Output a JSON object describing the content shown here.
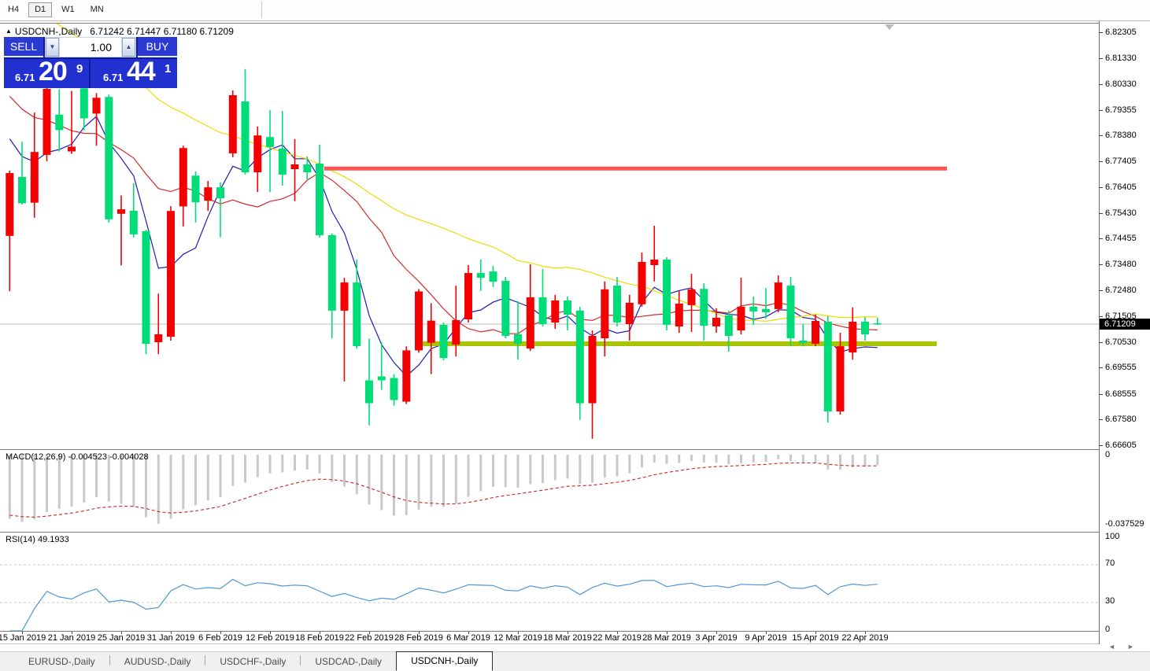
{
  "toolbar": {
    "timeframes": [
      "H4",
      "D1",
      "W1",
      "MN"
    ],
    "active": "D1"
  },
  "chart": {
    "collapse_icon": "▲",
    "title_symbol": "USDCNH-,Daily",
    "ohlc_display": "6.71242 6.71447 6.71180 6.71209"
  },
  "trade_panel": {
    "sell_label": "SELL",
    "buy_label": "BUY",
    "volume": "1.00",
    "sell_price_small": "6.71",
    "sell_price_big": "20",
    "sell_price_sup": "9",
    "buy_price_small": "6.71",
    "buy_price_big": "44",
    "buy_price_sup": "1"
  },
  "price_axis": {
    "ticks": [
      "6.82305",
      "6.81330",
      "6.80330",
      "6.79355",
      "6.78380",
      "6.77405",
      "6.76405",
      "6.75430",
      "6.74455",
      "6.73480",
      "6.72480",
      "6.71505",
      "6.70530",
      "6.69555",
      "6.68555",
      "6.67580",
      "6.66605"
    ],
    "current_price": "6.71209"
  },
  "macd_panel": {
    "label": "MACD(12,26,9)",
    "value_main": "-0.004523",
    "value_signal": "-0.004028",
    "axis_top": "0",
    "axis_bottom": "-0.037529"
  },
  "rsi_panel": {
    "label": "RSI(14)",
    "value": "49.1933",
    "axis_labels": [
      "100",
      "70",
      "30",
      "0"
    ]
  },
  "bottom_tabs": {
    "items": [
      "EURUSD-,Daily",
      "AUDUSD-,Daily",
      "USDCHF-,Daily",
      "USDCAD-,Daily",
      "USDCNH-,Daily"
    ],
    "active": "USDCNH-,Daily"
  },
  "scroll_arrows": {
    "left": "◄",
    "right": "►"
  },
  "chart_data": {
    "type": "candlestick",
    "symbol": "USDCNH-",
    "timeframe": "Daily",
    "title": "USDCNH-,Daily",
    "y_range": [
      6.66605,
      6.82305
    ],
    "color_convention": "red body = close above open (bullish), green body = close below open (bearish)",
    "bull_color": "#f50000",
    "bear_color": "#00dc78",
    "candles": [
      [
        "14 Jan 2019",
        6.7456,
        6.7704,
        6.7246,
        6.7695
      ],
      [
        "15 Jan 2019",
        6.768,
        6.7814,
        6.7575,
        6.758
      ],
      [
        "16 Jan 2019",
        6.7582,
        6.7925,
        6.7525,
        6.7775
      ],
      [
        "17 Jan 2019",
        6.7764,
        6.8024,
        6.774,
        6.8015
      ],
      [
        "18 Jan 2019",
        6.7917,
        6.8013,
        6.7777,
        6.7858
      ],
      [
        "21 Jan 2019",
        6.7777,
        6.8007,
        6.7768,
        6.7795
      ],
      [
        "22 Jan 2019",
        6.8017,
        6.803,
        6.7858,
        6.7903
      ],
      [
        "23 Jan 2019",
        6.7921,
        6.7999,
        6.7799,
        6.7981
      ],
      [
        "24 Jan 2019",
        6.7984,
        6.7993,
        6.7507,
        6.7519
      ],
      [
        "25 Jan 2019",
        6.754,
        6.761,
        6.7344,
        6.7557
      ],
      [
        "28 Jan 2019",
        6.7552,
        6.7656,
        6.745,
        6.7462
      ],
      [
        "29 Jan 2019",
        6.7474,
        6.748,
        6.7007,
        6.7046
      ],
      [
        "30 Jan 2019",
        6.7052,
        6.7237,
        6.7007,
        6.7082
      ],
      [
        "31 Jan 2019",
        6.7073,
        6.7569,
        6.7058,
        6.7551
      ],
      [
        "1 Feb 2019",
        6.7568,
        6.7799,
        6.7492,
        6.779
      ],
      [
        "4 Feb 2019",
        6.7685,
        6.7701,
        6.7507,
        6.7584
      ],
      [
        "5 Feb 2019",
        6.759,
        6.7665,
        6.7551,
        6.7641
      ],
      [
        "6 Feb 2019",
        6.7641,
        6.766,
        6.7451,
        6.7599
      ],
      [
        "7 Feb 2019",
        6.777,
        6.8009,
        6.7755,
        6.7991
      ],
      [
        "8 Feb 2019",
        6.7967,
        6.809,
        6.7689,
        6.7698
      ],
      [
        "11 Feb 2019",
        6.7698,
        6.7872,
        6.7623,
        6.7838
      ],
      [
        "12 Feb 2019",
        6.7832,
        6.7934,
        6.7623,
        6.7794
      ],
      [
        "13 Feb 2019",
        6.7788,
        6.7931,
        6.7647,
        6.7689
      ],
      [
        "14 Feb 2019",
        6.771,
        6.7824,
        6.7588,
        6.7728
      ],
      [
        "15 Feb 2019",
        6.7728,
        6.7758,
        6.7668,
        6.7698
      ],
      [
        "18 Feb 2019",
        6.7731,
        6.7803,
        6.745,
        6.7459
      ],
      [
        "19 Feb 2019",
        6.7459,
        6.7465,
        6.7067,
        6.7172
      ],
      [
        "20 Feb 2019",
        6.7172,
        6.7297,
        6.6903,
        6.7279
      ],
      [
        "21 Feb 2019",
        6.7279,
        6.7367,
        6.7028,
        6.7037
      ],
      [
        "22 Feb 2019",
        6.6907,
        6.7066,
        6.6736,
        6.682
      ],
      [
        "25 Feb 2019",
        6.6922,
        6.7052,
        6.6871,
        6.6907
      ],
      [
        "26 Feb 2019",
        6.6916,
        6.6931,
        6.6811,
        6.6832
      ],
      [
        "27 Feb 2019",
        6.6826,
        6.7036,
        6.6817,
        6.7021
      ],
      [
        "28 Feb 2019",
        6.7021,
        6.7254,
        6.7012,
        6.7245
      ],
      [
        "1 Mar 2019",
        6.705,
        6.72,
        6.6931,
        6.7134
      ],
      [
        "4 Mar 2019",
        6.7118,
        6.7127,
        6.6983,
        6.6992
      ],
      [
        "5 Mar 2019",
        6.7043,
        6.7267,
        6.6998,
        6.7136
      ],
      [
        "6 Mar 2019",
        6.7139,
        6.7345,
        6.7127,
        6.7315
      ],
      [
        "7 Mar 2019",
        6.7315,
        6.7366,
        6.7247,
        6.7297
      ],
      [
        "8 Mar 2019",
        6.7321,
        6.7342,
        6.7262,
        6.7282
      ],
      [
        "11 Mar 2019",
        6.7285,
        6.73,
        6.7067,
        6.7076
      ],
      [
        "12 Mar 2019",
        6.7082,
        6.7208,
        6.6986,
        6.7046
      ],
      [
        "13 Mar 2019",
        6.7028,
        6.7348,
        6.7019,
        6.7223
      ],
      [
        "14 Mar 2019",
        6.7223,
        6.733,
        6.7112,
        6.7121
      ],
      [
        "15 Mar 2019",
        6.7127,
        6.7232,
        6.7103,
        6.7211
      ],
      [
        "18 Mar 2019",
        6.7211,
        6.7226,
        6.7097,
        6.7157
      ],
      [
        "19 Mar 2019",
        6.7172,
        6.7187,
        6.6757,
        6.682
      ],
      [
        "20 Mar 2019",
        6.682,
        6.7097,
        6.6685,
        6.7076
      ],
      [
        "21 Mar 2019",
        6.7067,
        6.7283,
        6.6998,
        6.7253
      ],
      [
        "22 Mar 2019",
        6.7267,
        6.73,
        6.7112,
        6.7127
      ],
      [
        "25 Mar 2019",
        6.7121,
        6.7232,
        6.7058,
        6.7202
      ],
      [
        "26 Mar 2019",
        6.7196,
        6.7393,
        6.7187,
        6.7357
      ],
      [
        "27 Mar 2019",
        6.7345,
        6.7495,
        6.7283,
        6.7366
      ],
      [
        "28 Mar 2019",
        6.7366,
        6.7375,
        6.7097,
        6.7118
      ],
      [
        "29 Mar 2019",
        6.7112,
        6.7247,
        6.7088,
        6.7199
      ],
      [
        "1 Apr 2019",
        6.7193,
        6.7312,
        6.7091,
        6.7253
      ],
      [
        "2 Apr 2019",
        6.7255,
        6.7276,
        6.7058,
        6.7115
      ],
      [
        "3 Apr 2019",
        6.7112,
        6.7181,
        6.7088,
        6.7145
      ],
      [
        "4 Apr 2019",
        6.7154,
        6.7172,
        6.7016,
        6.7076
      ],
      [
        "5 Apr 2019",
        6.7097,
        6.7297,
        6.7082,
        6.7187
      ],
      [
        "8 Apr 2019",
        6.7187,
        6.7226,
        6.7118,
        6.7169
      ],
      [
        "9 Apr 2019",
        6.7178,
        6.7258,
        6.7142,
        6.7166
      ],
      [
        "10 Apr 2019",
        6.7178,
        6.7306,
        6.7166,
        6.7279
      ],
      [
        "11 Apr 2019",
        6.7267,
        6.73,
        6.7037,
        6.7067
      ],
      [
        "12 Apr 2019",
        6.7058,
        6.7121,
        6.7037,
        6.7049
      ],
      [
        "15 Apr 2019",
        6.7046,
        6.7157,
        6.7037,
        6.7133
      ],
      [
        "16 Apr 2019",
        6.713,
        6.7151,
        6.6747,
        6.6789
      ],
      [
        "17 Apr 2019",
        6.6789,
        6.7088,
        6.6777,
        6.7037
      ],
      [
        "18 Apr 2019",
        6.7013,
        6.7184,
        6.6986,
        6.713
      ],
      [
        "22 Apr 2019",
        6.713,
        6.7147,
        6.7058,
        6.7082
      ],
      [
        "23 Apr 2019",
        6.71242,
        6.71447,
        6.7118,
        6.71209
      ]
    ],
    "date_axis_labels": [
      "15 Jan 2019",
      "21 Jan 2019",
      "25 Jan 2019",
      "31 Jan 2019",
      "6 Feb 2019",
      "12 Feb 2019",
      "18 Feb 2019",
      "22 Feb 2019",
      "28 Feb 2019",
      "6 Mar 2019",
      "12 Mar 2019",
      "18 Mar 2019",
      "22 Mar 2019",
      "28 Mar 2019",
      "3 Apr 2019",
      "9 Apr 2019",
      "15 Apr 2019",
      "22 Apr 2019"
    ],
    "moving_averages": [
      {
        "name": "fast-ma",
        "window": 5,
        "color": "#1c1cb4"
      },
      {
        "name": "medium-ma",
        "window": 13,
        "color": "#cf2b2b"
      },
      {
        "name": "slow-ma",
        "window": 34,
        "color": "#efdc00"
      }
    ],
    "levels": {
      "resistance_line": {
        "price": 6.7712,
        "color": "#fa5454",
        "x_span": [
          412,
          1203
        ]
      },
      "support_line": {
        "price": 6.7046,
        "color": "#a9c400",
        "x_span": [
          533,
          1190
        ]
      },
      "current_price_line": {
        "price": 6.71209,
        "color": "#bdbdbd"
      }
    },
    "indicators": [
      {
        "type": "MACD",
        "params": [
          12,
          26,
          9
        ],
        "last_main": -0.004523,
        "last_signal": -0.004028,
        "hist_color": "#c9c9c9",
        "signal_color": "#cc2222",
        "axis": [
          0,
          -0.037529
        ]
      },
      {
        "type": "RSI",
        "params": [
          14
        ],
        "last_value": 49.1933,
        "line_color": "#4f97d2",
        "guide_levels": [
          70,
          30
        ],
        "axis": [
          100,
          70,
          30,
          0
        ]
      }
    ]
  }
}
